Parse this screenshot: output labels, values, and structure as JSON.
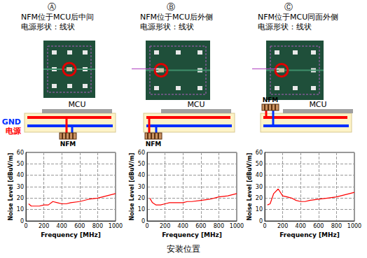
{
  "panels": [
    {
      "letter": "Ⓐ",
      "title": "NFM位于MCU后中间",
      "subtitle": "电源形状：线状"
    },
    {
      "letter": "Ⓑ",
      "title": "NFM位于MCU后外侧",
      "subtitle": "电源形状：线状"
    },
    {
      "letter": "Ⓒ",
      "title": "NFM位于MCU同面外侧",
      "subtitle": "电源形状：线状"
    }
  ],
  "diagram": {
    "mcu": "MCU",
    "nfm": "NFM",
    "gnd": "GND",
    "power": "电源"
  },
  "caption": "安装位置",
  "chart_data": [
    {
      "type": "line",
      "x_label": "Frequency [MHz]",
      "y_label": "Noise Level [dBuV/m]",
      "x": [
        30,
        60,
        100,
        150,
        200,
        250,
        300,
        350,
        400,
        450,
        500,
        600,
        700,
        800,
        900,
        1000
      ],
      "values": [
        15,
        13,
        13,
        13,
        14,
        14,
        17,
        16,
        15,
        15,
        16,
        17,
        19,
        20,
        22,
        24
      ],
      "color": "#ff0000",
      "xlim": [
        0,
        1000
      ],
      "xticks": [
        0,
        200,
        400,
        600,
        800,
        1000
      ],
      "ylim": [
        0,
        60
      ],
      "yticks": [
        0,
        10,
        20,
        30,
        40,
        50,
        60
      ],
      "grid": true
    },
    {
      "type": "line",
      "x_label": "Frequency [MHz]",
      "y_label": "Noise Level [dBuV/m]",
      "x": [
        30,
        60,
        100,
        150,
        200,
        250,
        300,
        350,
        400,
        450,
        500,
        600,
        700,
        800,
        900,
        1000
      ],
      "values": [
        20,
        16,
        14,
        14,
        15,
        16,
        16,
        16,
        16,
        17,
        17,
        18,
        19,
        21,
        22,
        24
      ],
      "color": "#ff0000",
      "xlim": [
        0,
        1000
      ],
      "xticks": [
        0,
        200,
        400,
        600,
        800,
        1000
      ],
      "ylim": [
        0,
        60
      ],
      "yticks": [
        0,
        10,
        20,
        30,
        40,
        50,
        60
      ],
      "grid": true
    },
    {
      "type": "line",
      "x_label": "Frequency [MHz]",
      "y_label": "Noise Level [dBuV/m]",
      "x": [
        30,
        60,
        100,
        150,
        200,
        250,
        300,
        350,
        400,
        450,
        500,
        600,
        700,
        800,
        900,
        1000
      ],
      "values": [
        14,
        15,
        24,
        28,
        22,
        21,
        20,
        18,
        17,
        17,
        18,
        19,
        20,
        21,
        23,
        25
      ],
      "color": "#ff0000",
      "xlim": [
        0,
        1000
      ],
      "xticks": [
        0,
        200,
        400,
        600,
        800,
        1000
      ],
      "ylim": [
        0,
        60
      ],
      "yticks": [
        0,
        10,
        20,
        30,
        40,
        50,
        60
      ],
      "grid": true
    }
  ]
}
